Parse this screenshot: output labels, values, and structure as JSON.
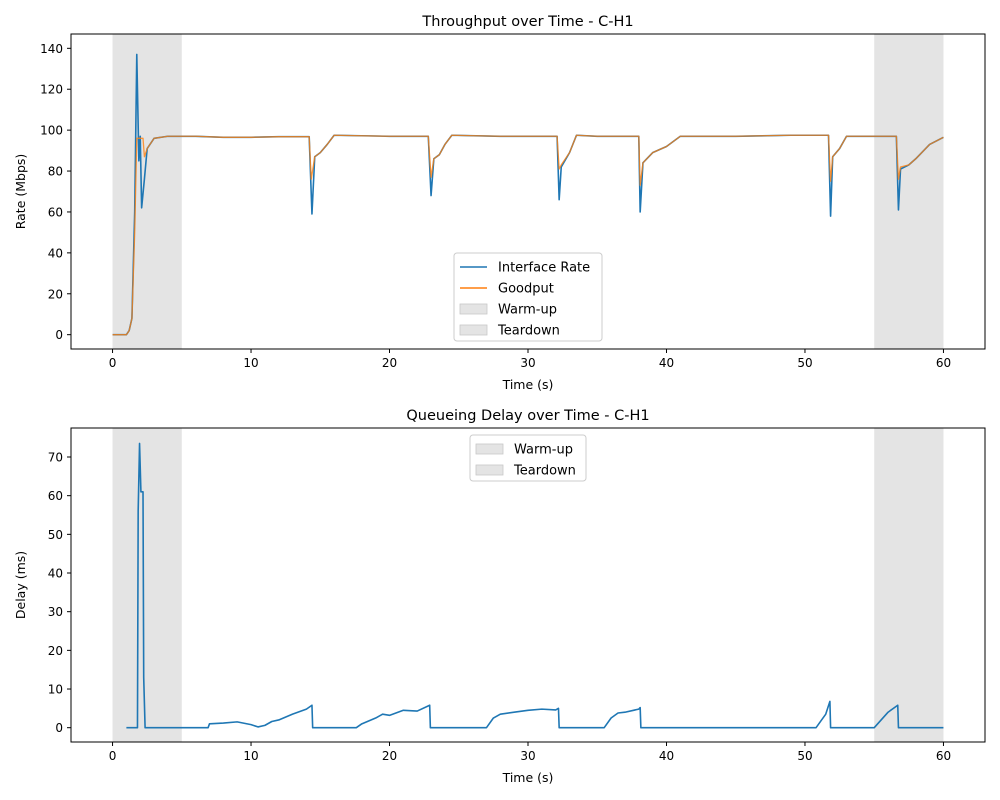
{
  "chart_data": [
    {
      "type": "line",
      "title": "Throughput over Time - C-H1",
      "xlabel": "Time (s)",
      "ylabel": "Rate (Mbps)",
      "xlim": [
        -3,
        63
      ],
      "ylim": [
        -7,
        147
      ],
      "xticks": [
        0,
        10,
        20,
        30,
        40,
        50,
        60
      ],
      "yticks": [
        0,
        20,
        40,
        60,
        80,
        100,
        120,
        140
      ],
      "grid": false,
      "legend_position": "lower center",
      "shaded_regions": [
        {
          "name": "Warm-up",
          "x": [
            0,
            5
          ],
          "color": "#d3d3d3"
        },
        {
          "name": "Teardown",
          "x": [
            55,
            60
          ],
          "color": "#d3d3d3"
        }
      ],
      "series": [
        {
          "name": "Interface Rate",
          "color": "#1f77b4",
          "points": [
            [
              0,
              0
            ],
            [
              1,
              0
            ],
            [
              1.2,
              2
            ],
            [
              1.4,
              8
            ],
            [
              1.6,
              60
            ],
            [
              1.75,
              137
            ],
            [
              1.9,
              85
            ],
            [
              2.0,
              97
            ],
            [
              2.1,
              62
            ],
            [
              2.3,
              76
            ],
            [
              2.5,
              91
            ],
            [
              3.0,
              96
            ],
            [
              4,
              97
            ],
            [
              6,
              97
            ],
            [
              8,
              96.5
            ],
            [
              10,
              96.5
            ],
            [
              12,
              96.8
            ],
            [
              14.2,
              96.8
            ],
            [
              14.4,
              59
            ],
            [
              14.6,
              87
            ],
            [
              15,
              89
            ],
            [
              15.5,
              93
            ],
            [
              16,
              97.5
            ],
            [
              20,
              97
            ],
            [
              22.8,
              97
            ],
            [
              23.0,
              68
            ],
            [
              23.2,
              86
            ],
            [
              23.6,
              88
            ],
            [
              24,
              93
            ],
            [
              24.5,
              97.5
            ],
            [
              28,
              97
            ],
            [
              32.1,
              97
            ],
            [
              32.25,
              66
            ],
            [
              32.4,
              82
            ],
            [
              33,
              89
            ],
            [
              33.5,
              97.5
            ],
            [
              35,
              97
            ],
            [
              38.0,
              97
            ],
            [
              38.1,
              60
            ],
            [
              38.3,
              84
            ],
            [
              39,
              89
            ],
            [
              40,
              92
            ],
            [
              41,
              97
            ],
            [
              45,
              97
            ],
            [
              49,
              97.5
            ],
            [
              51.7,
              97.5
            ],
            [
              51.85,
              58
            ],
            [
              52.0,
              87
            ],
            [
              52.5,
              91
            ],
            [
              53,
              97
            ],
            [
              56.6,
              97
            ],
            [
              56.75,
              61
            ],
            [
              56.9,
              81
            ],
            [
              57.5,
              83
            ],
            [
              58,
              86
            ],
            [
              59,
              93
            ],
            [
              60,
              96.5
            ]
          ]
        },
        {
          "name": "Goodput",
          "color": "#ff7f0e",
          "points": [
            [
              0,
              0
            ],
            [
              1,
              0
            ],
            [
              1.2,
              2
            ],
            [
              1.4,
              8
            ],
            [
              1.6,
              50
            ],
            [
              1.75,
              96
            ],
            [
              2.2,
              96
            ],
            [
              2.3,
              87
            ],
            [
              2.5,
              91
            ],
            [
              3.0,
              96
            ],
            [
              4,
              97
            ],
            [
              6,
              97
            ],
            [
              8,
              96.5
            ],
            [
              10,
              96.5
            ],
            [
              12,
              96.8
            ],
            [
              14.2,
              96.8
            ],
            [
              14.35,
              76
            ],
            [
              14.6,
              87
            ],
            [
              15,
              89
            ],
            [
              15.5,
              93
            ],
            [
              16,
              97.5
            ],
            [
              20,
              97
            ],
            [
              22.8,
              97
            ],
            [
              23.0,
              77
            ],
            [
              23.2,
              86
            ],
            [
              23.6,
              88
            ],
            [
              24,
              93
            ],
            [
              24.5,
              97.5
            ],
            [
              28,
              97
            ],
            [
              32.1,
              97
            ],
            [
              32.25,
              81
            ],
            [
              32.4,
              83
            ],
            [
              33,
              89
            ],
            [
              33.5,
              97.5
            ],
            [
              35,
              97
            ],
            [
              38.0,
              97
            ],
            [
              38.1,
              73
            ],
            [
              38.3,
              84
            ],
            [
              39,
              89
            ],
            [
              40,
              92
            ],
            [
              41,
              97
            ],
            [
              45,
              97
            ],
            [
              49,
              97.5
            ],
            [
              51.7,
              97.5
            ],
            [
              51.85,
              75
            ],
            [
              52.0,
              87
            ],
            [
              52.5,
              91
            ],
            [
              53,
              97
            ],
            [
              56.6,
              97
            ],
            [
              56.75,
              76
            ],
            [
              56.9,
              82
            ],
            [
              57.5,
              83
            ],
            [
              58,
              86
            ],
            [
              59,
              93
            ],
            [
              60,
              96.5
            ]
          ]
        }
      ]
    },
    {
      "type": "line",
      "title": "Queueing Delay over Time - C-H1",
      "xlabel": "Time (s)",
      "ylabel": "Delay (ms)",
      "xlim": [
        -3,
        63
      ],
      "ylim": [
        -3.7,
        77.5
      ],
      "xticks": [
        0,
        10,
        20,
        30,
        40,
        50,
        60
      ],
      "yticks": [
        0,
        10,
        20,
        30,
        40,
        50,
        60,
        70
      ],
      "grid": false,
      "legend_position": "upper center",
      "shaded_regions": [
        {
          "name": "Warm-up",
          "x": [
            0,
            5
          ],
          "color": "#d3d3d3"
        },
        {
          "name": "Teardown",
          "x": [
            55,
            60
          ],
          "color": "#d3d3d3"
        }
      ],
      "series": [
        {
          "name": "",
          "color": "#1f77b4",
          "points": [
            [
              1.0,
              0
            ],
            [
              1.8,
              0
            ],
            [
              1.85,
              56
            ],
            [
              1.95,
              73.5
            ],
            [
              2.05,
              61
            ],
            [
              2.2,
              61
            ],
            [
              2.25,
              13
            ],
            [
              2.35,
              0
            ],
            [
              6.9,
              0
            ],
            [
              7,
              1
            ],
            [
              8,
              1.2
            ],
            [
              9,
              1.5
            ],
            [
              10,
              0.8
            ],
            [
              10.5,
              0.2
            ],
            [
              11,
              0.6
            ],
            [
              11.5,
              1.6
            ],
            [
              12,
              2
            ],
            [
              13,
              3.5
            ],
            [
              14,
              4.8
            ],
            [
              14.4,
              5.8
            ],
            [
              14.45,
              0
            ],
            [
              17.6,
              0
            ],
            [
              18,
              1
            ],
            [
              19,
              2.5
            ],
            [
              19.5,
              3.5
            ],
            [
              20,
              3.2
            ],
            [
              21,
              4.5
            ],
            [
              22,
              4.3
            ],
            [
              22.9,
              5.8
            ],
            [
              22.95,
              0
            ],
            [
              27,
              0
            ],
            [
              27.5,
              2.5
            ],
            [
              28,
              3.5
            ],
            [
              29,
              4
            ],
            [
              30,
              4.5
            ],
            [
              31,
              4.8
            ],
            [
              32,
              4.6
            ],
            [
              32.2,
              5
            ],
            [
              32.25,
              0
            ],
            [
              35.5,
              0
            ],
            [
              36,
              2.5
            ],
            [
              36.5,
              3.8
            ],
            [
              37,
              4
            ],
            [
              38,
              4.8
            ],
            [
              38.1,
              5.2
            ],
            [
              38.15,
              0
            ],
            [
              50.8,
              0
            ],
            [
              51.2,
              2
            ],
            [
              51.5,
              3.5
            ],
            [
              51.8,
              6.8
            ],
            [
              51.85,
              0
            ],
            [
              55.0,
              0
            ],
            [
              55.5,
              2
            ],
            [
              56,
              4
            ],
            [
              56.7,
              5.8
            ],
            [
              56.75,
              0
            ],
            [
              60,
              0
            ]
          ]
        }
      ]
    }
  ]
}
